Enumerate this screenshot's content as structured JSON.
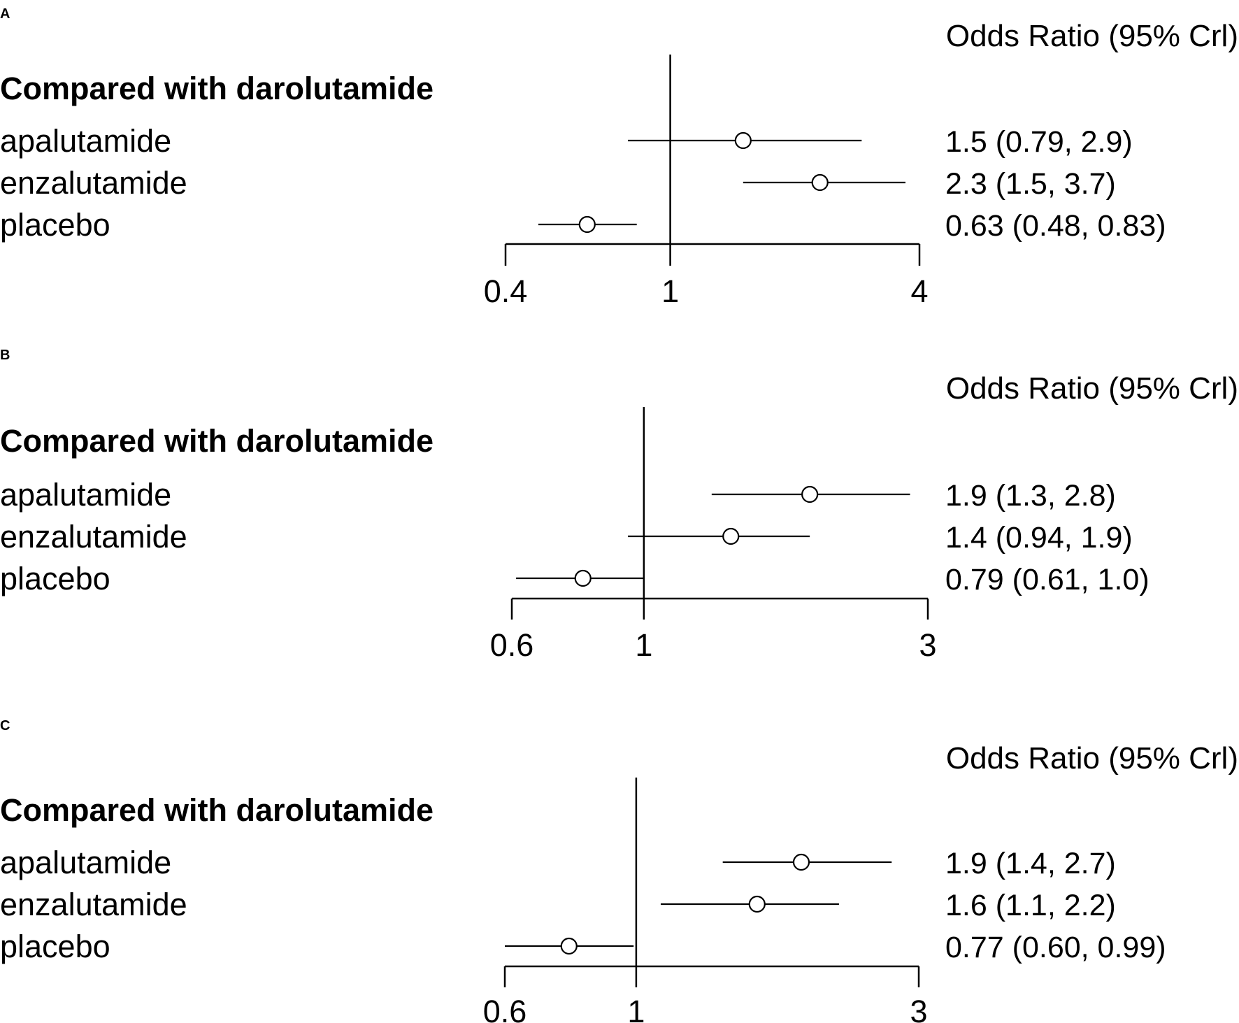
{
  "chart_data": [
    {
      "type": "forest",
      "panel": "A",
      "header": "Odds Ratio (95% Crl)",
      "group_title": "Compared with darolutamide",
      "scale": "log",
      "xlim": [
        0.4,
        4
      ],
      "ticks": [
        0.4,
        1,
        4
      ],
      "tick_labels": [
        "0.4",
        "1",
        "4"
      ],
      "reference_line": 1,
      "rows": [
        {
          "label": "apalutamide",
          "or": 1.5,
          "lo": 0.79,
          "hi": 2.9,
          "text": "1.5 (0.79, 2.9)"
        },
        {
          "label": "enzalutamide",
          "or": 2.3,
          "lo": 1.5,
          "hi": 3.7,
          "text": "2.3 (1.5, 3.7)"
        },
        {
          "label": "placebo",
          "or": 0.63,
          "lo": 0.48,
          "hi": 0.83,
          "text": "0.63 (0.48, 0.83)"
        }
      ]
    },
    {
      "type": "forest",
      "panel": "B",
      "header": "Odds Ratio (95% Crl)",
      "group_title": "Compared with darolutamide",
      "scale": "log",
      "xlim": [
        0.6,
        3
      ],
      "ticks": [
        0.6,
        1,
        3
      ],
      "tick_labels": [
        "0.6",
        "1",
        "3"
      ],
      "reference_line": 1,
      "rows": [
        {
          "label": "apalutamide",
          "or": 1.9,
          "lo": 1.3,
          "hi": 2.8,
          "text": "1.9 (1.3, 2.8)"
        },
        {
          "label": "enzalutamide",
          "or": 1.4,
          "lo": 0.94,
          "hi": 1.9,
          "text": "1.4 (0.94, 1.9)"
        },
        {
          "label": "placebo",
          "or": 0.79,
          "lo": 0.61,
          "hi": 1.0,
          "text": "0.79 (0.61, 1.0)"
        }
      ]
    },
    {
      "type": "forest",
      "panel": "C",
      "header": "Odds Ratio (95% Crl)",
      "group_title": "Compared with darolutamide",
      "scale": "log",
      "xlim": [
        0.6,
        3
      ],
      "ticks": [
        0.6,
        1,
        3
      ],
      "tick_labels": [
        "0.6",
        "1",
        "3"
      ],
      "reference_line": 1,
      "rows": [
        {
          "label": "apalutamide",
          "or": 1.9,
          "lo": 1.4,
          "hi": 2.7,
          "text": "1.9 (1.4, 2.7)"
        },
        {
          "label": "enzalutamide",
          "or": 1.6,
          "lo": 1.1,
          "hi": 2.2,
          "text": "1.6 (1.1, 2.2)"
        },
        {
          "label": "placebo",
          "or": 0.77,
          "lo": 0.6,
          "hi": 0.99,
          "text": "0.77 (0.60, 0.99)"
        }
      ]
    }
  ]
}
